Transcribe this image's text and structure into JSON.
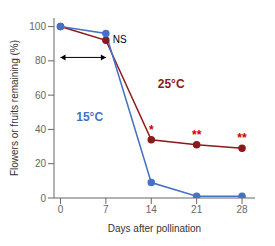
{
  "chart_data": {
    "type": "line",
    "x": [
      0,
      7,
      14,
      21,
      28
    ],
    "series": [
      {
        "name": "25°C",
        "color": "#8B1A1A",
        "values": [
          100,
          92,
          34,
          31,
          29
        ],
        "marker": "circle"
      },
      {
        "name": "15°C",
        "color": "#4472C4",
        "values": [
          100,
          96,
          9,
          1,
          1
        ],
        "marker": "circle"
      }
    ],
    "xlabel": "Days after pollination",
    "ylabel": "Flowers or fruits remaining (%)",
    "xlim": [
      -1,
      30
    ],
    "ylim": [
      0,
      105
    ],
    "xticks": [
      0,
      7,
      14,
      21,
      28
    ],
    "yticks": [
      0,
      20,
      40,
      60,
      80,
      100
    ],
    "grid": false,
    "annotations": [
      {
        "text": "NS",
        "series": "15°C",
        "x": 7,
        "color": "#000000"
      },
      {
        "text": "*",
        "series": "25°C",
        "x": 14,
        "color": "#cc0000"
      },
      {
        "text": "**",
        "series": "25°C",
        "x": 21,
        "color": "#cc0000"
      },
      {
        "text": "**",
        "series": "25°C",
        "x": 28,
        "color": "#cc0000"
      }
    ]
  }
}
